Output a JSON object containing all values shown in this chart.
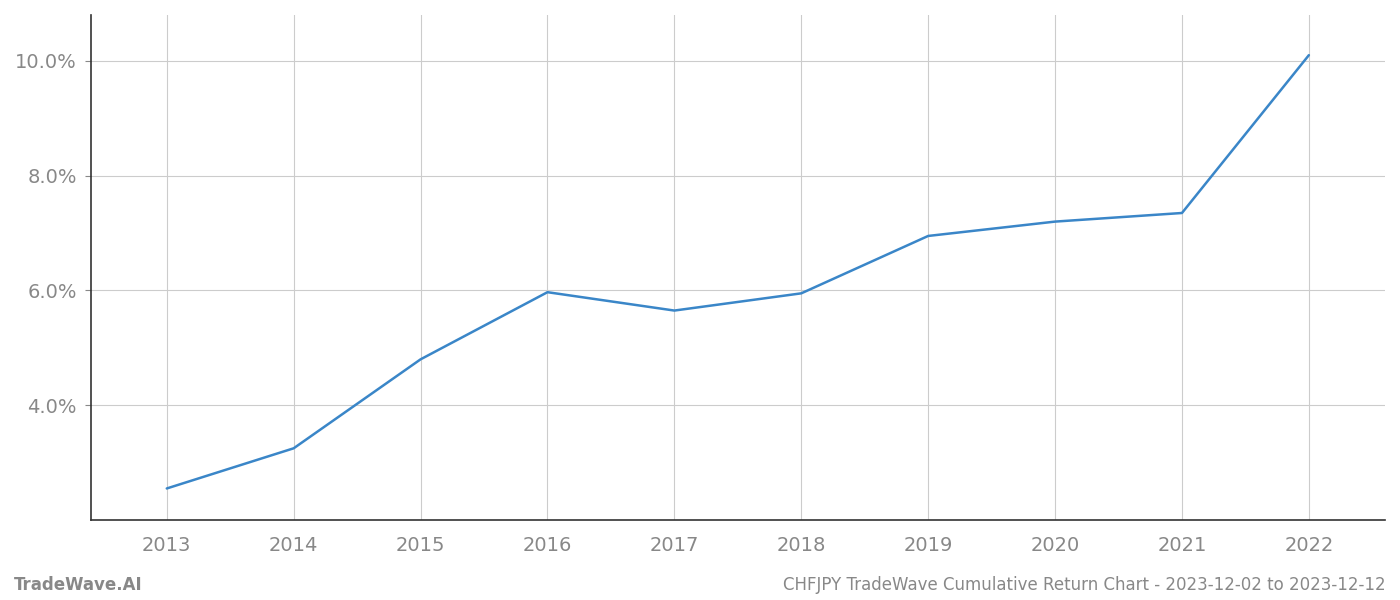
{
  "years": [
    2013,
    2014,
    2015,
    2016,
    2017,
    2018,
    2019,
    2020,
    2021,
    2022
  ],
  "values": [
    2.55,
    3.25,
    4.8,
    5.97,
    5.65,
    5.95,
    6.95,
    7.2,
    7.35,
    10.1
  ],
  "line_color": "#3a86c8",
  "line_width": 1.8,
  "background_color": "#ffffff",
  "grid_color": "#cccccc",
  "grid_linewidth": 0.8,
  "tick_color": "#888888",
  "ylim": [
    2.0,
    10.8
  ],
  "yticks": [
    4.0,
    6.0,
    8.0,
    10.0
  ],
  "ytick_labels": [
    "4.0%",
    "6.0%",
    "8.0%",
    "10.0%"
  ],
  "xticks": [
    2013,
    2014,
    2015,
    2016,
    2017,
    2018,
    2019,
    2020,
    2021,
    2022
  ],
  "xlim": [
    2012.4,
    2022.6
  ],
  "xlabel_color": "#888888",
  "ylabel_color": "#888888",
  "tick_fontsize": 14,
  "footer_left": "TradeWave.AI",
  "footer_right": "CHFJPY TradeWave Cumulative Return Chart - 2023-12-02 to 2023-12-12",
  "footer_color": "#888888",
  "footer_fontsize": 12,
  "spine_color": "#333333",
  "spine_linewidth": 1.2
}
